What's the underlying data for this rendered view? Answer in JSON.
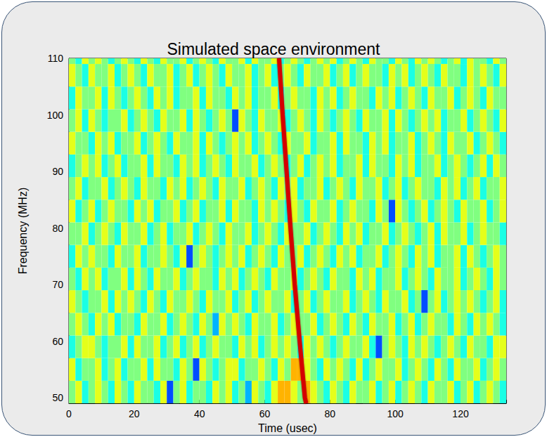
{
  "chart_data": {
    "type": "heatmap",
    "title": "Simulated space environment",
    "x_label": "Time (usec)",
    "y_label": "Frequency (MHz)",
    "xlim": [
      0,
      134
    ],
    "ylim": [
      49,
      110
    ],
    "xticks": [
      0,
      20,
      40,
      60,
      80,
      100,
      120
    ],
    "yticks": [
      50,
      60,
      70,
      80,
      90,
      100,
      110
    ],
    "grid": false,
    "zlim": [
      0,
      10
    ],
    "x_bins": [
      0,
      2,
      4,
      6,
      8,
      10,
      12,
      14,
      16,
      18,
      20,
      22,
      24,
      26,
      28,
      30,
      32,
      34,
      36,
      38,
      40,
      42,
      44,
      46,
      48,
      50,
      52,
      54,
      56,
      58,
      60,
      62,
      64,
      66,
      68,
      70,
      72,
      74,
      76,
      78,
      80,
      82,
      84,
      86,
      88,
      90,
      92,
      94,
      96,
      98,
      100,
      102,
      104,
      106,
      108,
      110,
      112,
      114,
      116,
      118,
      120,
      122,
      124,
      126,
      128,
      130,
      132,
      134
    ],
    "y_bins": [
      49,
      53,
      57,
      61,
      65,
      69,
      73,
      77,
      81,
      85,
      89,
      93,
      97,
      101,
      105,
      109,
      113
    ],
    "cells": [
      [
        5,
        6,
        4,
        5,
        6,
        5,
        4,
        6,
        5,
        4,
        6,
        5,
        5,
        4,
        6,
        2,
        5,
        6,
        4,
        5,
        5,
        4,
        6,
        5,
        6,
        4,
        5,
        3,
        6,
        5,
        4,
        6,
        7,
        7,
        6,
        5,
        7,
        6,
        5,
        4,
        6,
        5,
        4,
        6,
        5,
        5,
        6,
        4,
        5,
        6,
        4,
        5,
        6,
        5,
        4,
        6,
        5,
        5,
        6,
        4,
        5,
        6,
        4,
        5,
        6,
        5,
        4
      ],
      [
        6,
        4,
        5,
        5,
        6,
        4,
        5,
        6,
        4,
        5,
        5,
        6,
        4,
        6,
        5,
        5,
        4,
        6,
        5,
        2,
        6,
        5,
        4,
        5,
        6,
        6,
        4,
        5,
        5,
        6,
        5,
        4,
        6,
        5,
        7,
        7,
        6,
        5,
        4,
        6,
        5,
        6,
        5,
        4,
        6,
        4,
        5,
        6,
        5,
        5,
        6,
        4,
        5,
        6,
        5,
        4,
        6,
        5,
        4,
        6,
        5,
        5,
        6,
        4,
        5,
        6,
        5
      ],
      [
        4,
        5,
        6,
        6,
        5,
        4,
        5,
        5,
        6,
        4,
        6,
        5,
        5,
        6,
        4,
        5,
        6,
        4,
        5,
        6,
        4,
        5,
        6,
        5,
        5,
        4,
        6,
        5,
        6,
        4,
        5,
        6,
        5,
        6,
        5,
        4,
        6,
        5,
        6,
        5,
        4,
        5,
        6,
        5,
        5,
        6,
        4,
        2,
        5,
        6,
        5,
        4,
        6,
        5,
        6,
        5,
        4,
        5,
        6,
        5,
        4,
        6,
        5,
        5,
        4,
        6,
        6
      ],
      [
        5,
        6,
        5,
        4,
        6,
        5,
        6,
        4,
        5,
        5,
        4,
        6,
        5,
        5,
        6,
        4,
        5,
        6,
        5,
        4,
        6,
        5,
        3,
        6,
        5,
        6,
        5,
        4,
        6,
        5,
        5,
        6,
        4,
        5,
        6,
        5,
        5,
        6,
        4,
        5,
        6,
        5,
        4,
        6,
        5,
        4,
        6,
        5,
        5,
        6,
        4,
        5,
        6,
        4,
        5,
        6,
        5,
        5,
        4,
        6,
        5,
        4,
        6,
        5,
        6,
        5,
        4
      ],
      [
        6,
        5,
        4,
        5,
        5,
        6,
        4,
        6,
        5,
        6,
        5,
        4,
        6,
        5,
        4,
        6,
        5,
        5,
        6,
        5,
        4,
        6,
        5,
        5,
        6,
        4,
        5,
        6,
        4,
        5,
        6,
        5,
        5,
        6,
        4,
        5,
        6,
        4,
        5,
        6,
        5,
        5,
        6,
        4,
        5,
        6,
        5,
        4,
        6,
        5,
        5,
        6,
        4,
        5,
        2,
        5,
        6,
        4,
        5,
        6,
        5,
        6,
        5,
        4,
        5,
        6,
        4
      ],
      [
        5,
        4,
        6,
        5,
        6,
        4,
        5,
        5,
        6,
        4,
        6,
        5,
        4,
        6,
        5,
        5,
        6,
        4,
        5,
        6,
        5,
        5,
        4,
        6,
        5,
        6,
        4,
        5,
        6,
        5,
        4,
        6,
        5,
        5,
        6,
        4,
        5,
        6,
        5,
        4,
        6,
        5,
        5,
        4,
        6,
        5,
        6,
        4,
        5,
        5,
        6,
        4,
        5,
        6,
        5,
        4,
        6,
        5,
        5,
        6,
        4,
        5,
        6,
        5,
        4,
        6,
        5
      ],
      [
        4,
        6,
        5,
        6,
        5,
        5,
        4,
        6,
        5,
        5,
        6,
        4,
        5,
        5,
        6,
        5,
        4,
        6,
        2,
        5,
        6,
        5,
        4,
        5,
        6,
        5,
        6,
        4,
        5,
        6,
        5,
        4,
        6,
        5,
        5,
        6,
        4,
        5,
        6,
        5,
        4,
        6,
        5,
        6,
        4,
        5,
        5,
        6,
        4,
        5,
        6,
        5,
        4,
        6,
        5,
        6,
        4,
        5,
        5,
        6,
        4,
        6,
        5,
        4,
        5,
        6,
        5
      ],
      [
        5,
        5,
        6,
        4,
        5,
        6,
        5,
        4,
        6,
        5,
        5,
        6,
        4,
        5,
        6,
        4,
        5,
        5,
        6,
        4,
        5,
        6,
        5,
        4,
        6,
        5,
        5,
        6,
        4,
        5,
        6,
        5,
        4,
        6,
        5,
        5,
        6,
        4,
        5,
        6,
        5,
        4,
        6,
        5,
        6,
        4,
        5,
        5,
        6,
        4,
        5,
        6,
        5,
        4,
        5,
        6,
        4,
        6,
        5,
        5,
        6,
        4,
        5,
        6,
        5,
        5,
        4
      ],
      [
        6,
        4,
        5,
        6,
        4,
        5,
        6,
        5,
        5,
        4,
        6,
        5,
        6,
        4,
        5,
        5,
        6,
        4,
        5,
        6,
        4,
        5,
        5,
        6,
        4,
        6,
        5,
        5,
        4,
        6,
        5,
        6,
        5,
        4,
        6,
        5,
        4,
        6,
        5,
        5,
        6,
        4,
        5,
        6,
        5,
        5,
        4,
        6,
        5,
        2,
        6,
        5,
        4,
        5,
        6,
        4,
        5,
        6,
        5,
        4,
        6,
        5,
        5,
        6,
        4,
        5,
        6
      ],
      [
        5,
        6,
        4,
        5,
        5,
        6,
        4,
        5,
        6,
        5,
        4,
        6,
        5,
        5,
        4,
        6,
        5,
        6,
        4,
        5,
        6,
        5,
        4,
        6,
        5,
        5,
        6,
        4,
        5,
        6,
        5,
        4,
        6,
        5,
        6,
        4,
        5,
        5,
        6,
        4,
        5,
        6,
        5,
        4,
        6,
        5,
        5,
        6,
        4,
        5,
        6,
        4,
        5,
        6,
        5,
        5,
        4,
        6,
        5,
        6,
        4,
        5,
        6,
        4,
        5,
        5,
        6
      ],
      [
        4,
        5,
        6,
        5,
        6,
        4,
        5,
        6,
        4,
        5,
        5,
        6,
        4,
        6,
        5,
        5,
        4,
        6,
        5,
        6,
        4,
        5,
        6,
        5,
        4,
        6,
        5,
        5,
        6,
        4,
        5,
        6,
        5,
        4,
        5,
        6,
        4,
        5,
        6,
        5,
        6,
        4,
        5,
        5,
        6,
        4,
        6,
        5,
        5,
        4,
        6,
        5,
        6,
        4,
        5,
        5,
        6,
        4,
        5,
        6,
        5,
        4,
        5,
        6,
        4,
        6,
        5
      ],
      [
        6,
        5,
        5,
        4,
        6,
        5,
        6,
        4,
        5,
        5,
        6,
        4,
        5,
        6,
        5,
        4,
        6,
        5,
        5,
        6,
        4,
        6,
        5,
        4,
        5,
        6,
        5,
        6,
        4,
        5,
        6,
        5,
        4,
        6,
        5,
        5,
        6,
        4,
        5,
        5,
        6,
        4,
        6,
        5,
        5,
        4,
        6,
        5,
        6,
        4,
        5,
        5,
        6,
        4,
        5,
        6,
        5,
        4,
        6,
        5,
        5,
        6,
        4,
        5,
        6,
        5,
        4
      ],
      [
        5,
        6,
        4,
        6,
        5,
        4,
        5,
        5,
        6,
        4,
        5,
        6,
        5,
        4,
        6,
        5,
        5,
        6,
        4,
        6,
        5,
        4,
        5,
        6,
        5,
        2,
        6,
        5,
        4,
        6,
        5,
        5,
        6,
        4,
        5,
        6,
        5,
        4,
        6,
        5,
        4,
        5,
        6,
        5,
        4,
        6,
        5,
        5,
        6,
        4,
        6,
        5,
        4,
        5,
        6,
        5,
        6,
        4,
        5,
        5,
        6,
        4,
        5,
        6,
        5,
        4,
        6
      ],
      [
        4,
        6,
        5,
        5,
        6,
        4,
        6,
        5,
        4,
        5,
        6,
        5,
        4,
        6,
        5,
        6,
        4,
        5,
        5,
        6,
        4,
        6,
        5,
        5,
        4,
        6,
        5,
        6,
        4,
        5,
        5,
        6,
        4,
        5,
        6,
        5,
        5,
        4,
        6,
        5,
        6,
        4,
        5,
        6,
        5,
        5,
        4,
        6,
        5,
        6,
        4,
        5,
        6,
        5,
        4,
        6,
        5,
        5,
        6,
        4,
        5,
        6,
        5,
        4,
        6,
        5,
        5
      ],
      [
        6,
        5,
        4,
        6,
        5,
        5,
        6,
        4,
        5,
        6,
        5,
        4,
        6,
        5,
        5,
        6,
        4,
        5,
        6,
        4,
        5,
        6,
        5,
        4,
        6,
        5,
        5,
        6,
        4,
        5,
        6,
        4,
        5,
        6,
        5,
        4,
        6,
        5,
        5,
        6,
        4,
        5,
        6,
        4,
        5,
        6,
        5,
        5,
        4,
        6,
        5,
        6,
        4,
        5,
        6,
        5,
        4,
        6,
        5,
        5,
        4,
        6,
        5,
        6,
        5,
        4,
        6
      ],
      [
        5,
        4,
        6,
        5,
        6,
        5,
        4,
        5,
        6,
        5,
        4,
        6,
        5,
        4,
        6,
        5,
        5,
        6,
        4,
        5,
        6,
        5,
        4,
        6,
        5,
        5,
        6,
        4,
        6,
        5,
        5,
        6,
        4,
        5,
        6,
        5,
        4,
        5,
        6,
        5,
        6,
        4,
        5,
        6,
        5,
        4,
        6,
        5,
        5,
        4,
        6,
        5,
        4,
        6,
        5,
        6,
        5,
        4,
        5,
        6,
        4,
        6,
        5,
        5,
        4,
        6,
        5
      ]
    ],
    "signal": {
      "x": [
        64.4,
        65.5,
        66.7,
        67.9,
        69.2,
        70.7,
        72.3,
        72.7
      ],
      "y": [
        110,
        100,
        90,
        80,
        70,
        60,
        50,
        49
      ],
      "color": "#d40000"
    }
  }
}
